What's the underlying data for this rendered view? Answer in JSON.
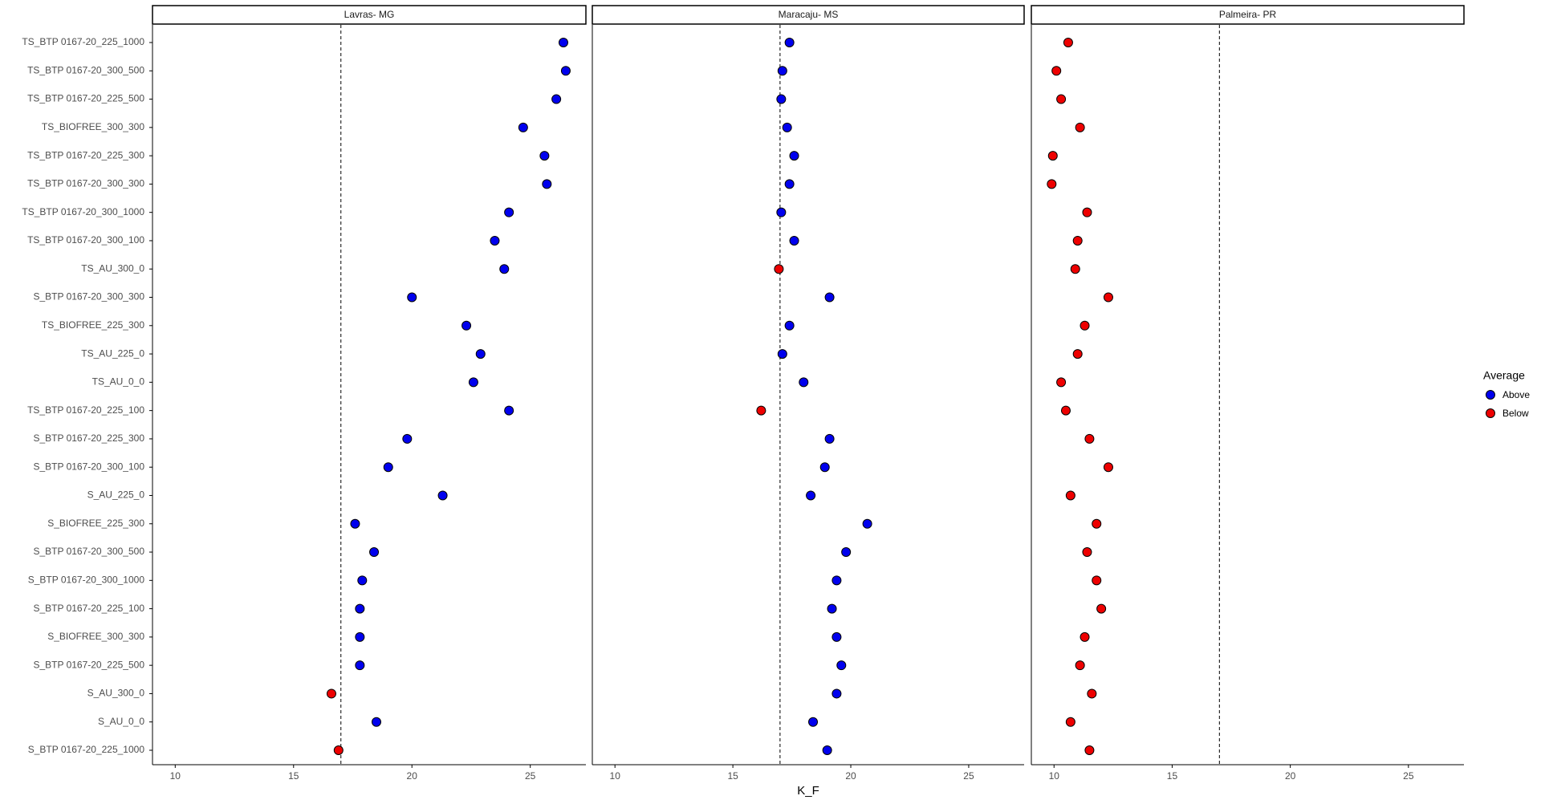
{
  "chart_data": {
    "type": "scatter",
    "xlabel": "K_F",
    "legend_title": "Average",
    "categories": [
      "TS_BTP 0167-20_225_1000",
      "TS_BTP 0167-20_300_500",
      "TS_BTP 0167-20_225_500",
      "TS_BIOFREE_300_300",
      "TS_BTP 0167-20_225_300",
      "TS_BTP 0167-20_300_300",
      "TS_BTP 0167-20_300_1000",
      "TS_BTP 0167-20_300_100",
      "TS_AU_300_0",
      "S_BTP 0167-20_300_300",
      "TS_BIOFREE_225_300",
      "TS_AU_225_0",
      "TS_AU_0_0",
      "TS_BTP 0167-20_225_100",
      "S_BTP 0167-20_225_300",
      "S_BTP 0167-20_300_100",
      "S_AU_225_0",
      "S_BIOFREE_225_300",
      "S_BTP 0167-20_300_500",
      "S_BTP 0167-20_300_1000",
      "S_BTP 0167-20_225_100",
      "S_BIOFREE_300_300",
      "S_BTP 0167-20_225_500",
      "S_AU_300_0",
      "S_AU_0_0",
      "S_BTP 0167-20_225_1000"
    ],
    "xlim": [
      9.04,
      27.35
    ],
    "xticks": [
      10,
      15,
      20,
      25
    ],
    "vline": 17,
    "panels": [
      {
        "title": "Lavras- MG",
        "series": [
          {
            "name": "Above",
            "color": "#0000ee",
            "values": [
              26.4,
              26.5,
              26.1,
              24.7,
              25.6,
              25.7,
              24.1,
              23.5,
              23.9,
              20.0,
              22.3,
              22.9,
              22.6,
              24.1,
              19.8,
              19.0,
              21.3,
              17.6,
              18.4,
              17.9,
              17.8,
              17.8,
              17.8,
              null,
              18.5,
              null
            ]
          },
          {
            "name": "Below",
            "color": "#ee0000",
            "values": [
              null,
              null,
              null,
              null,
              null,
              null,
              null,
              null,
              null,
              null,
              null,
              null,
              null,
              null,
              null,
              null,
              null,
              null,
              null,
              null,
              null,
              null,
              null,
              16.6,
              null,
              16.9
            ]
          }
        ]
      },
      {
        "title": "Maracaju- MS",
        "series": [
          {
            "name": "Above",
            "color": "#0000ee",
            "values": [
              17.4,
              17.1,
              17.05,
              17.3,
              17.6,
              17.4,
              17.05,
              17.6,
              null,
              19.1,
              17.4,
              17.1,
              18.0,
              null,
              19.1,
              18.9,
              18.3,
              20.7,
              19.8,
              19.4,
              19.2,
              19.4,
              19.6,
              19.4,
              18.4,
              19.0
            ]
          },
          {
            "name": "Below",
            "color": "#ee0000",
            "values": [
              null,
              null,
              null,
              null,
              null,
              null,
              null,
              null,
              16.95,
              null,
              null,
              null,
              null,
              16.2,
              null,
              null,
              null,
              null,
              null,
              null,
              null,
              null,
              null,
              null,
              null,
              null
            ]
          }
        ]
      },
      {
        "title": "Palmeira- PR",
        "series": [
          {
            "name": "Above",
            "color": "#0000ee",
            "values": [
              null,
              null,
              null,
              null,
              null,
              null,
              null,
              null,
              null,
              null,
              null,
              null,
              null,
              null,
              null,
              null,
              null,
              null,
              null,
              null,
              null,
              null,
              null,
              null,
              null,
              null
            ]
          },
          {
            "name": "Below",
            "color": "#ee0000",
            "values": [
              10.6,
              10.1,
              10.3,
              11.1,
              9.95,
              9.9,
              11.4,
              11.0,
              10.9,
              12.3,
              11.3,
              11.0,
              10.3,
              10.5,
              11.5,
              12.3,
              10.7,
              11.8,
              11.4,
              11.8,
              12.0,
              11.3,
              11.1,
              11.6,
              10.7,
              11.5
            ]
          }
        ]
      }
    ]
  }
}
